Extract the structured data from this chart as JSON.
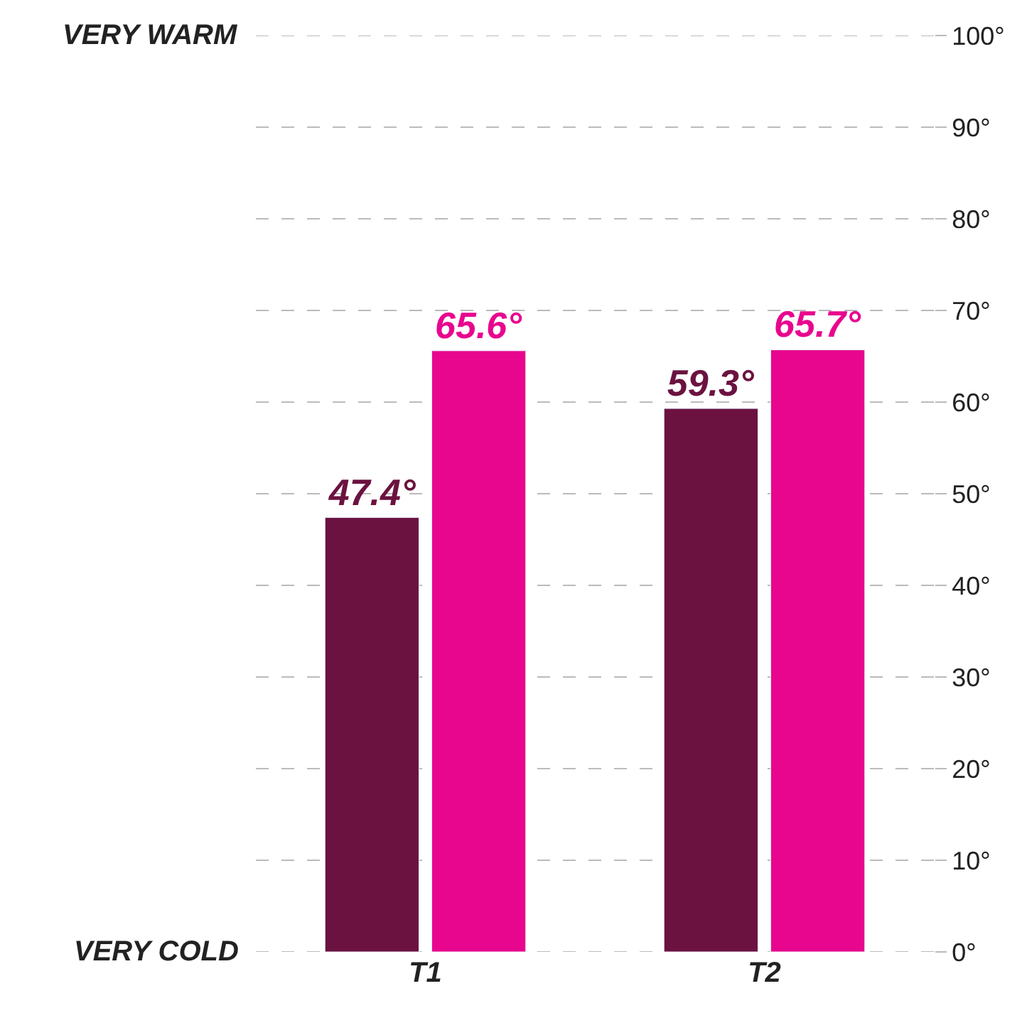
{
  "chart_data": {
    "type": "bar",
    "categories": [
      "T1",
      "T2"
    ],
    "series": [
      {
        "color": "#6b1240",
        "values": [
          47.4,
          59.3
        ],
        "value_labels": [
          "47.4°",
          "59.3°"
        ]
      },
      {
        "color": "#e8068e",
        "values": [
          65.6,
          65.7
        ],
        "value_labels": [
          "65.6°",
          "65.7°"
        ]
      }
    ],
    "ylim": [
      0,
      100
    ],
    "yticks": [
      {
        "value": 0,
        "label": "0°"
      },
      {
        "value": 10,
        "label": "10°"
      },
      {
        "value": 20,
        "label": "20°"
      },
      {
        "value": 30,
        "label": "30°"
      },
      {
        "value": 40,
        "label": "40°"
      },
      {
        "value": 50,
        "label": "50°"
      },
      {
        "value": 60,
        "label": "60°"
      },
      {
        "value": 70,
        "label": "70°"
      },
      {
        "value": 80,
        "label": "80°"
      },
      {
        "value": 90,
        "label": "90°"
      },
      {
        "value": 100,
        "label": "100°"
      }
    ],
    "annotations": [
      "VERY WARM",
      "VERY COLD"
    ],
    "grid": "y"
  }
}
